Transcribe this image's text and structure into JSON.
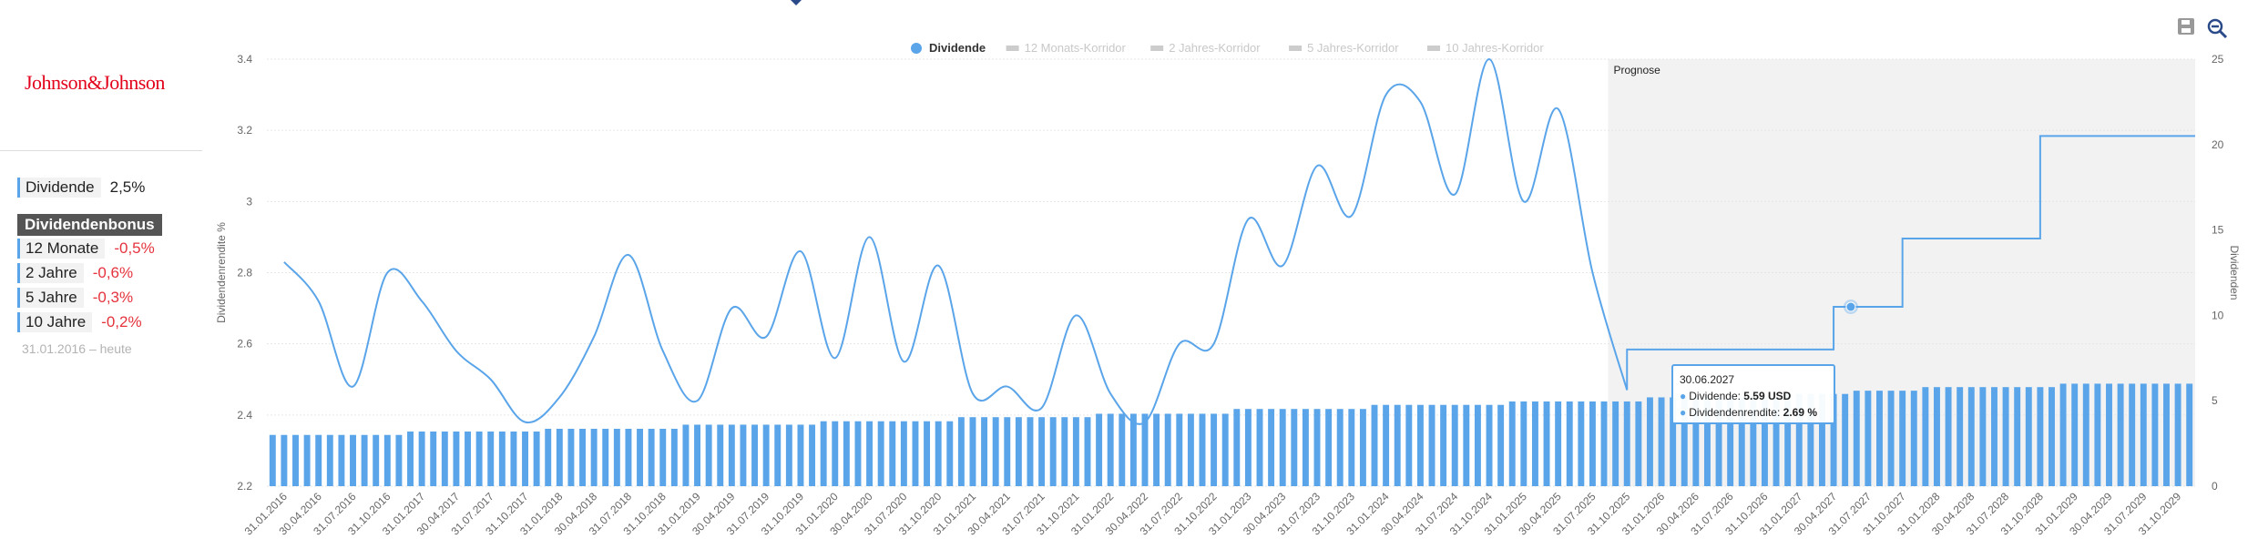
{
  "company": "Johnson&Johnson",
  "stats": {
    "dividend_label": "Dividende",
    "dividend_value": "2,5%",
    "bonus_label": "Dividendenbonus",
    "rows": [
      {
        "label": "12 Monate",
        "value": "-0,5%"
      },
      {
        "label": "2 Jahre",
        "value": "-0,6%"
      },
      {
        "label": "5 Jahre",
        "value": "-0,3%"
      },
      {
        "label": "10 Jahre",
        "value": "-0,2%"
      }
    ],
    "range": "31.01.2016 – heute"
  },
  "toolbar": {
    "save_icon": "save-icon",
    "zoom_icon": "zoom-out-icon"
  },
  "colors": {
    "series": "#5aa5ea",
    "legend_inactive": "#cccccc",
    "forecast_bg": "#f2f2f2"
  },
  "tooltip": {
    "date": "30.06.2027",
    "dividend_label": "Dividende:",
    "dividend_value": "5.59 USD",
    "yield_label": "Dividendenrendite:",
    "yield_value": "2.69 %"
  },
  "chart_data": {
    "type": "bar",
    "legend": [
      {
        "name": "Dividende",
        "active": true
      },
      {
        "name": "12 Monats-Korridor",
        "active": false
      },
      {
        "name": "2 Jahres-Korridor",
        "active": false
      },
      {
        "name": "5 Jahres-Korridor",
        "active": false
      },
      {
        "name": "10 Jahres-Korridor",
        "active": false
      }
    ],
    "legend_position": "top-center",
    "forecast_label": "Prognose",
    "forecast_start": "31.10.2025",
    "ylabel_left": "Dividendenrendite %",
    "ylabel_right": "Dividenden",
    "y_left": {
      "min": 2.2,
      "max": 3.4,
      "ticks": [
        "2.2",
        "2.4",
        "2.6",
        "2.8",
        "3",
        "3.2",
        "3.4"
      ]
    },
    "y_right": {
      "min": 0,
      "max": 25,
      "ticks": [
        "0",
        "5",
        "10",
        "15",
        "20",
        "25"
      ]
    },
    "grid": true,
    "x_ticks": [
      "31.01.2016",
      "30.04.2016",
      "31.07.2016",
      "31.10.2016",
      "31.01.2017",
      "30.04.2017",
      "31.07.2017",
      "31.10.2017",
      "31.01.2018",
      "30.04.2018",
      "31.07.2018",
      "31.10.2018",
      "31.01.2019",
      "30.04.2019",
      "31.07.2019",
      "31.10.2019",
      "31.01.2020",
      "30.04.2020",
      "31.07.2020",
      "31.10.2020",
      "31.01.2021",
      "30.04.2021",
      "31.07.2021",
      "31.10.2021",
      "31.01.2022",
      "30.04.2022",
      "31.07.2022",
      "31.10.2022",
      "31.01.2023",
      "30.04.2023",
      "31.07.2023",
      "31.10.2023",
      "31.01.2024",
      "30.04.2024",
      "31.07.2024",
      "31.10.2024",
      "31.01.2025",
      "30.04.2025",
      "31.07.2025",
      "31.10.2025",
      "31.01.2026",
      "30.04.2026",
      "31.07.2026",
      "31.10.2026",
      "31.01.2027",
      "30.04.2027",
      "31.07.2027",
      "31.10.2027",
      "31.01.2028",
      "30.04.2028",
      "31.07.2028",
      "31.10.2028",
      "31.01.2029",
      "30.04.2029",
      "31.07.2029",
      "31.10.2029"
    ],
    "bar_values": [
      3.0,
      3.0,
      3.0,
      3.0,
      3.2,
      3.2,
      3.2,
      3.2,
      3.36,
      3.36,
      3.36,
      3.36,
      3.6,
      3.6,
      3.6,
      3.6,
      3.8,
      3.8,
      3.8,
      3.8,
      4.04,
      4.04,
      4.04,
      4.04,
      4.24,
      4.24,
      4.24,
      4.24,
      4.52,
      4.52,
      4.52,
      4.52,
      4.76,
      4.76,
      4.76,
      4.76,
      4.96,
      4.96,
      4.96,
      4.96,
      5.2,
      5.2,
      5.2,
      5.2,
      5.4,
      5.4,
      5.59,
      5.59,
      5.8,
      5.8,
      5.8,
      5.8,
      6.0,
      6.0,
      6.0,
      6.0
    ],
    "bar_groups": 3,
    "yield_series": {
      "name": "Dividendenrendite",
      "dates": [
        "31.01.2016",
        "30.04.2016",
        "31.07.2016",
        "31.10.2016",
        "31.01.2017",
        "30.04.2017",
        "31.07.2017",
        "31.10.2017",
        "31.01.2018",
        "30.04.2018",
        "31.07.2018",
        "31.10.2018",
        "31.01.2019",
        "30.04.2019",
        "31.07.2019",
        "31.10.2019",
        "31.01.2020",
        "30.04.2020",
        "31.07.2020",
        "31.10.2020",
        "31.01.2021",
        "30.04.2021",
        "31.07.2021",
        "31.10.2021",
        "31.01.2022",
        "30.04.2022",
        "31.07.2022",
        "31.10.2022",
        "31.01.2023",
        "30.04.2023",
        "31.07.2023",
        "31.10.2023",
        "31.01.2024",
        "30.04.2024",
        "31.07.2024",
        "31.10.2024",
        "31.01.2025",
        "30.04.2025",
        "31.07.2025",
        "31.10.2025"
      ],
      "values": [
        2.83,
        2.72,
        2.48,
        2.8,
        2.72,
        2.58,
        2.5,
        2.38,
        2.45,
        2.62,
        2.85,
        2.58,
        2.44,
        2.7,
        2.62,
        2.86,
        2.56,
        2.9,
        2.55,
        2.82,
        2.46,
        2.48,
        2.42,
        2.68,
        2.46,
        2.38,
        2.6,
        2.6,
        2.95,
        2.82,
        3.1,
        2.96,
        3.3,
        3.28,
        3.02,
        3.4,
        3.0,
        3.26,
        2.8,
        2.47
      ]
    },
    "forecast_dividend_steps": [
      {
        "from": "31.10.2025",
        "value": 8
      },
      {
        "from": "30.04.2027",
        "value": 10.5
      },
      {
        "from": "31.10.2027",
        "value": 14.5
      },
      {
        "from": "31.10.2028",
        "value": 20.5
      }
    ],
    "highlight_point": {
      "date": "30.06.2027",
      "value": 10.5
    }
  }
}
